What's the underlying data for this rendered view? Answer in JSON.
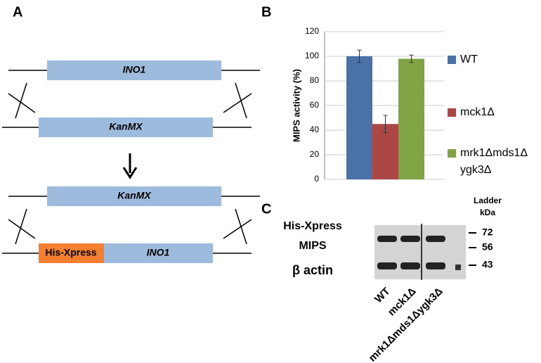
{
  "panels": {
    "a": "A",
    "b": "B",
    "c": "C"
  },
  "diagram": {
    "top": {
      "upper": "INO1",
      "lower": "KanMX"
    },
    "bottom": {
      "upper": "KanMX",
      "tag": "His-Xpress",
      "lower": "INO1"
    }
  },
  "chart_data": {
    "type": "bar",
    "y_label": "MIPS activity (%)",
    "categories": [
      "WT",
      "mck1Δ",
      "mrk1Δmds1Δ ygk3Δ"
    ],
    "colors": [
      "#4a72a8",
      "#ab4744",
      "#80a343"
    ],
    "values": [
      100,
      45,
      98
    ],
    "errors": [
      5,
      7,
      3
    ],
    "ylim": [
      0,
      120
    ],
    "yticks": [
      0,
      20,
      40,
      60,
      80,
      100,
      120
    ],
    "grid": true
  },
  "blot": {
    "labels": [
      "His-Xpress",
      "MIPS",
      "β actin"
    ],
    "ladder_title": "Ladder",
    "ladder_unit": "kDa",
    "ladder": [
      72,
      56,
      43
    ],
    "lanes": [
      "WT",
      "mck1Δ",
      "mrk1Δmds1Δygk3Δ"
    ]
  }
}
